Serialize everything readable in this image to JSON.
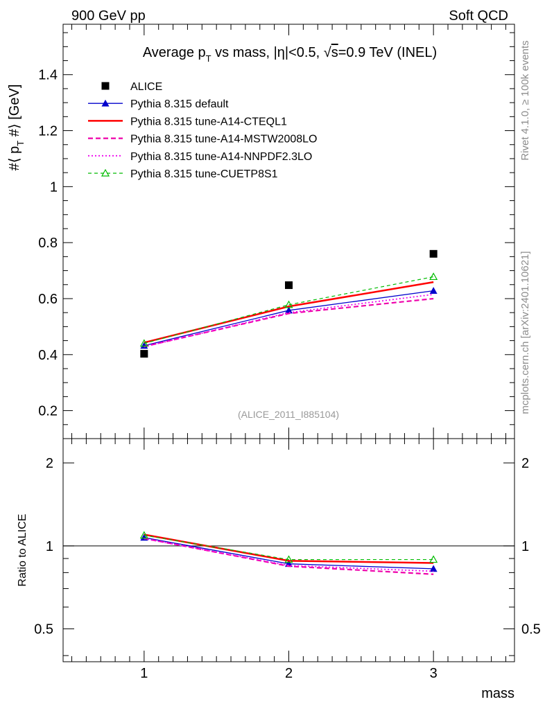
{
  "header": {
    "left": "900 GeV pp",
    "right": "Soft QCD"
  },
  "side_labels": {
    "rivet": "Rivet 4.1.0, ≥ 100k events",
    "mcplots": "mcplots.cern.ch [arXiv:2401.10621]"
  },
  "colors": {
    "alice": "#000000",
    "default": "#0000cc",
    "cteql1": "#ff0000",
    "mstw": "#ee00aa",
    "nnpdf": "#ee00ee",
    "cuetp": "#00bb00"
  },
  "chart_data": {
    "type": "line",
    "title": "Average pT vs mass, |η|<0.5, √s=0.9 TeV (INEL)",
    "title_parts": {
      "prefix": "Average p",
      "sub": "T",
      "mid": " vs mass, |",
      "eta": "η",
      "cond": "|<0.5, ",
      "root": "√",
      "s": "s",
      "suffix": "=0.9 TeV (INEL)"
    },
    "ylabel": "#⟨ p_T #⟩ [GeV]",
    "ylabel_parts": {
      "a": "#⟨ p",
      "sub": "T",
      "b": " #⟩ [GeV]"
    },
    "xlabel": "mass",
    "watermark": "(ALICE_2011_I885104)",
    "x": [
      1,
      2,
      3
    ],
    "xlim": [
      0.44,
      3.56
    ],
    "ylim": [
      0.1,
      1.58
    ],
    "yticks": [
      0.2,
      0.4,
      0.6,
      0.8,
      1,
      1.2,
      1.4
    ],
    "ytick_labels": [
      "0.2",
      "0.4",
      "0.6",
      "0.8",
      "1",
      "1.2",
      "1.4"
    ],
    "xticks": [
      1,
      2,
      3
    ],
    "xtick_labels": [
      "1",
      "2",
      "3"
    ],
    "series": [
      {
        "key": "alice",
        "name": "ALICE",
        "values": [
          0.403,
          0.648,
          0.76
        ],
        "marker": "square",
        "line": "none"
      },
      {
        "key": "default",
        "name": "Pythia 8.315 default",
        "values": [
          0.432,
          0.558,
          0.628
        ],
        "marker": "triangle-filled",
        "line": "solid"
      },
      {
        "key": "cteql1",
        "name": "Pythia 8.315 tune-A14-CTEQL1",
        "values": [
          0.443,
          0.572,
          0.659
        ],
        "marker": "none",
        "line": "solid-thick"
      },
      {
        "key": "mstw",
        "name": "Pythia 8.315 tune-A14-MSTW2008LO",
        "values": [
          0.429,
          0.547,
          0.6
        ],
        "marker": "none",
        "line": "dashed"
      },
      {
        "key": "nnpdf",
        "name": "Pythia 8.315 tune-A14-NNPDF2.3LO",
        "values": [
          0.428,
          0.55,
          0.615
        ],
        "marker": "none",
        "line": "dotted"
      },
      {
        "key": "cuetp",
        "name": "Pythia 8.315 tune-CUETP8S1",
        "values": [
          0.44,
          0.578,
          0.678
        ],
        "marker": "triangle-open",
        "line": "dashed-thin"
      }
    ],
    "ratio": {
      "ylabel": "Ratio to ALICE",
      "yscale": "log",
      "ylim": [
        0.38,
        2.45
      ],
      "yticks": [
        0.5,
        1,
        2
      ],
      "ytick_labels": [
        "0.5",
        "1",
        "2"
      ],
      "series": [
        {
          "key": "default",
          "values": [
            1.072,
            0.861,
            0.826
          ]
        },
        {
          "key": "cteql1",
          "values": [
            1.099,
            0.883,
            0.867
          ]
        },
        {
          "key": "mstw",
          "values": [
            1.065,
            0.844,
            0.789
          ]
        },
        {
          "key": "nnpdf",
          "values": [
            1.062,
            0.849,
            0.809
          ]
        },
        {
          "key": "cuetp",
          "values": [
            1.092,
            0.892,
            0.892
          ]
        }
      ]
    }
  }
}
